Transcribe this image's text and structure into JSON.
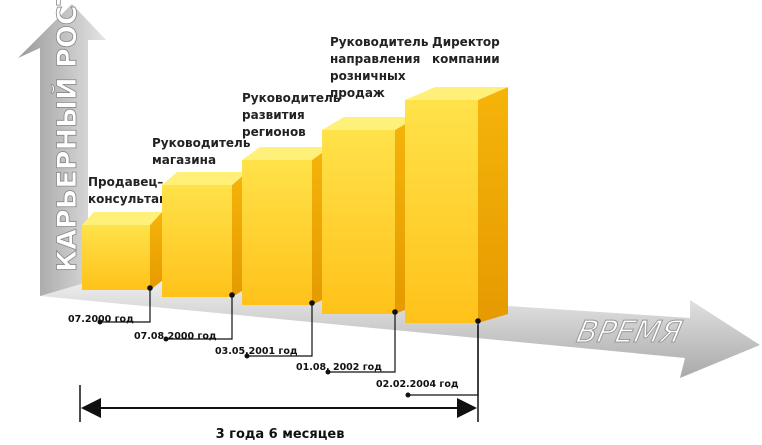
{
  "y_axis_label": "КАРЬЕРНЫЙ РОСТ",
  "x_axis_label": "ВРЕМЯ",
  "steps": [
    {
      "lines": [
        "Продавец–",
        "консультант"
      ],
      "date": "07.2000 год"
    },
    {
      "lines": [
        "Руководитель",
        "магазина"
      ],
      "date": "07.08.2000 год"
    },
    {
      "lines": [
        "Руководитель",
        "развития",
        "регионов"
      ],
      "date": "03.05.2001 год"
    },
    {
      "lines": [
        "Руководитель",
        "направления",
        "розничных",
        "продаж"
      ],
      "date": "01.08. 2002 год"
    },
    {
      "lines": [
        "Директор",
        "компании"
      ],
      "date": "02.02.2004 год"
    }
  ],
  "duration": "3 года 6 месяцев"
}
